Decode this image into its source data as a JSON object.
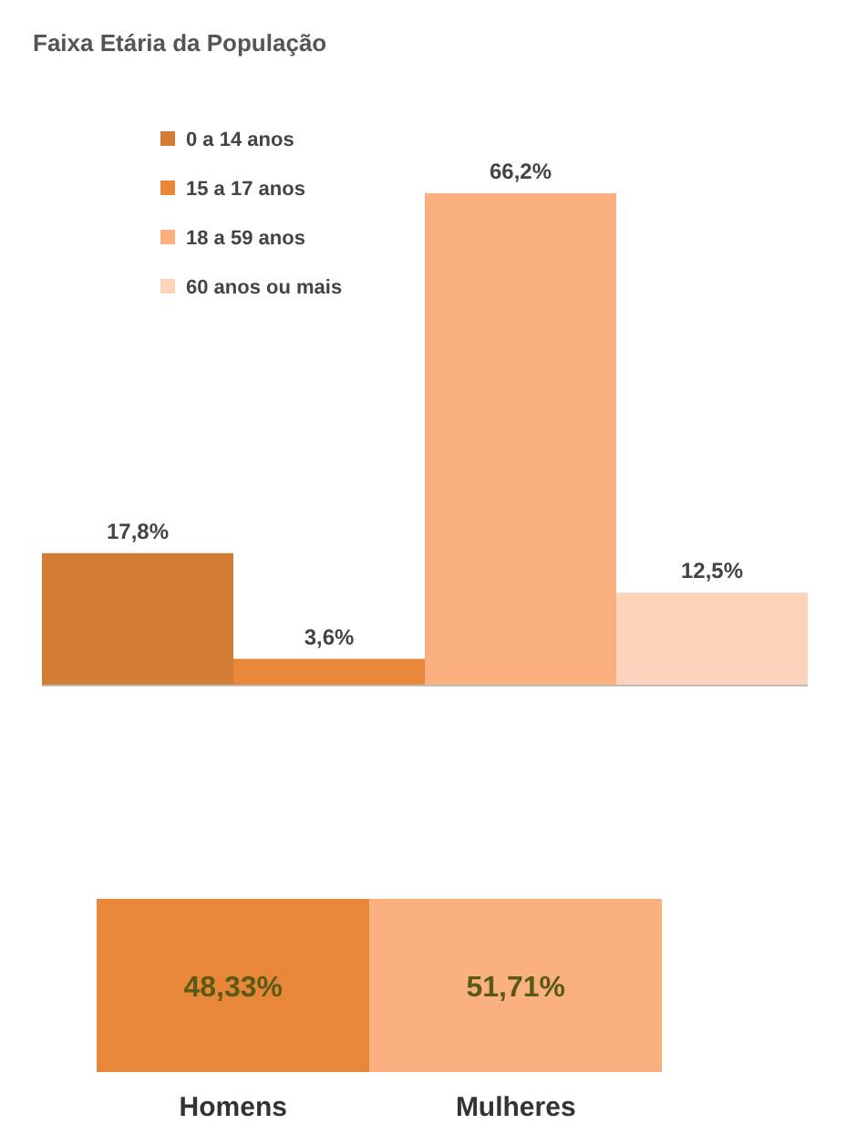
{
  "chart_data": [
    {
      "type": "bar",
      "title": "Faixa Etária da População",
      "categories": [
        null
      ],
      "legend": "top left",
      "series": [
        {
          "name": "0 a 14 anos",
          "color": "#d27c36",
          "values": [
            17.8
          ],
          "value_labels": [
            "17,8%"
          ]
        },
        {
          "name": "15 a 17 anos",
          "color": "#e8873a",
          "values": [
            3.6
          ],
          "value_labels": [
            "3,6%"
          ]
        },
        {
          "name": "18 a 59 anos",
          "color": "#fbb07f",
          "values": [
            66.2
          ],
          "value_labels": [
            "66,2%"
          ]
        },
        {
          "name": "60 anos ou mais",
          "color": "#fdd3bb",
          "values": [
            12.5
          ],
          "value_labels": [
            "12,5%"
          ]
        }
      ]
    },
    {
      "type": "bar",
      "orientation": "horizontal",
      "stacked": true,
      "categories": [
        null
      ],
      "series": [
        {
          "name": "Homens",
          "color": "#e8873a",
          "values": [
            48.33
          ],
          "value_labels": [
            "48,33%"
          ]
        },
        {
          "name": "Mulheres",
          "color": "#fbb07f",
          "values": [
            51.71
          ],
          "value_labels": [
            "51,71%"
          ]
        }
      ]
    }
  ]
}
